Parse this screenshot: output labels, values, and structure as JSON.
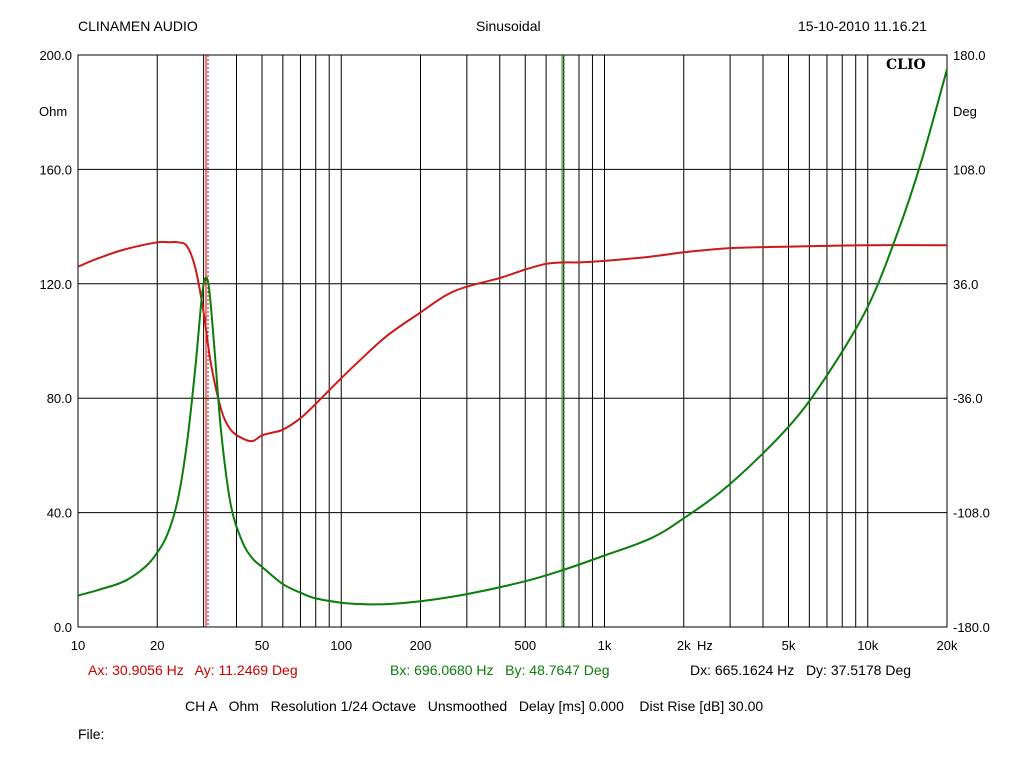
{
  "header": {
    "left": "CLINAMEN AUDIO",
    "center": "Sinusoidal",
    "right": "15-10-2010 11.16.21"
  },
  "brand": "CLIO",
  "cursors": {
    "a": "Ax: 30.9056 Hz   Ay: 11.2469 Deg",
    "b": "Bx: 696.0680 Hz   By: 48.7647 Deg",
    "d": "Dx: 665.1624 Hz   Dy: 37.5178 Deg"
  },
  "settings": "CH A   Ohm   Resolution 1/24 Octave   Unsmoothed   Delay [ms] 0.000    Dist Rise [dB] 30.00",
  "file_label": "File:",
  "colors": {
    "impedance": "#cc1a1a",
    "phase": "#0a7d0a",
    "grid": "#000000",
    "cursor_a": "#cc0000",
    "cursor_b": "#0a7d0a"
  },
  "chart_data": {
    "type": "line",
    "title": "Sinusoidal",
    "x_scale": "log",
    "xlim": [
      10,
      20000
    ],
    "x_ticks": [
      10,
      20,
      50,
      100,
      200,
      500,
      1000,
      2000,
      5000,
      10000,
      20000
    ],
    "x_tick_labels": [
      "10",
      "20",
      "50",
      "100",
      "200",
      "500",
      "1k",
      "2k",
      "5k",
      "10k",
      "20k"
    ],
    "xlabel": "Hz",
    "ylim_left": [
      0,
      200
    ],
    "yticks_left": [
      "200.0",
      "160.0",
      "120.0",
      "80.0",
      "40.0",
      "0.0"
    ],
    "ylabel_left": "Ohm",
    "ylim_right": [
      -180,
      180
    ],
    "yticks_right": [
      "180.0",
      "108.0",
      "36.0",
      "-36.0",
      "-108.0",
      "-180.0"
    ],
    "ylabel_right": "Deg",
    "grid": true,
    "cursor_a_hz": 30.9056,
    "cursor_b_hz": 696.068,
    "series": [
      {
        "axis": "left",
        "color": "#cc1a1a",
        "x": [
          10,
          12,
          15,
          20,
          22,
          24,
          26,
          28,
          30,
          32,
          35,
          38,
          42,
          46,
          50,
          55,
          60,
          70,
          80,
          100,
          120,
          150,
          200,
          250,
          300,
          400,
          500,
          600,
          700,
          800,
          1000,
          1500,
          2000,
          3000,
          5000,
          10000,
          20000
        ],
        "y": [
          126,
          129,
          132,
          134.5,
          134.5,
          134.5,
          133,
          125,
          110,
          92,
          76,
          69,
          66,
          65,
          67,
          68,
          69,
          73,
          78,
          87,
          94,
          102,
          110,
          116,
          119,
          122,
          125,
          127,
          127.5,
          127.5,
          128,
          129.5,
          131,
          132.5,
          133,
          133.5,
          133.5
        ]
      },
      {
        "axis": "left",
        "color": "#0a7d0a",
        "x": [
          10,
          12,
          15,
          18,
          20,
          22,
          24,
          26,
          28,
          29.5,
          30.5,
          31.5,
          33,
          35,
          38,
          42,
          46,
          50,
          60,
          70,
          80,
          100,
          120,
          150,
          200,
          300,
          500,
          700,
          1000,
          1500,
          2000,
          3000,
          5000,
          7000,
          10000,
          13000,
          16000,
          20000
        ],
        "y": [
          11,
          13,
          16,
          21,
          26,
          33,
          45,
          65,
          92,
          115,
          122,
          118,
          97,
          68,
          43,
          30,
          24,
          21,
          15,
          12,
          10,
          8.5,
          8,
          8,
          9,
          11.5,
          16,
          20,
          25,
          31,
          38,
          50,
          70,
          88,
          112,
          138,
          163,
          195
        ]
      }
    ]
  }
}
